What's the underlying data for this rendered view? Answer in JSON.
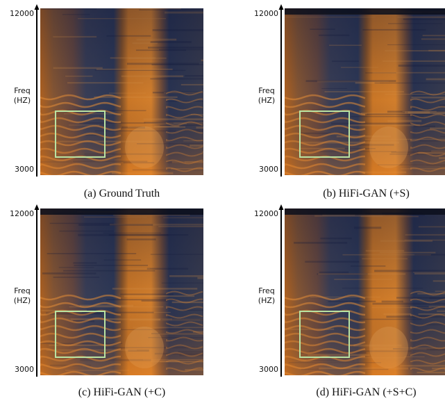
{
  "panels": [
    {
      "caption": "(a) Ground Truth",
      "y_top": "12000",
      "y_label": [
        "Freq",
        "(HZ)"
      ],
      "y_bottom": "3000"
    },
    {
      "caption": "(b) HiFi-GAN (+S)",
      "y_top": "12000",
      "y_label": [
        "Freq",
        "(HZ)"
      ],
      "y_bottom": "3000"
    },
    {
      "caption": "(c) HiFi-GAN (+C)",
      "y_top": "12000",
      "y_label": [
        "Freq",
        "(HZ)"
      ],
      "y_bottom": "3000"
    },
    {
      "caption": "(d) HiFi-GAN (+S+C)",
      "y_top": "12000",
      "y_label": [
        "Freq",
        "(HZ)"
      ],
      "y_bottom": "3000"
    }
  ]
}
